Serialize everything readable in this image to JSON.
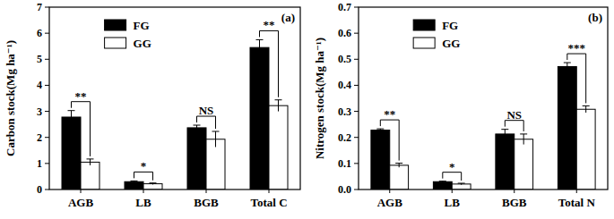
{
  "chart_data": [
    {
      "type": "bar",
      "title": "(a)",
      "y_label": "Carbon stock(Mg ha⁻¹)",
      "categories": [
        "AGB",
        "LB",
        "BGB",
        "Total C"
      ],
      "series": [
        {
          "name": "FG",
          "color": "#000000",
          "values": [
            2.78,
            0.3,
            2.37,
            5.45
          ],
          "errors": [
            0.25,
            0.03,
            0.1,
            0.3
          ]
        },
        {
          "name": "GG",
          "color": "#ffffff",
          "values": [
            1.05,
            0.22,
            1.93,
            3.22
          ],
          "errors": [
            0.12,
            0.03,
            0.3,
            0.22
          ]
        }
      ],
      "significance": [
        "**",
        "*",
        "NS",
        "**"
      ],
      "ylim": [
        0,
        7
      ],
      "yticks": [
        0,
        1,
        2,
        3,
        4,
        5,
        6,
        7
      ],
      "legend": "upper left",
      "grid": false
    },
    {
      "type": "bar",
      "title": "(b)",
      "y_label": "Nitrogen stock(Mg ha⁻¹)",
      "categories": [
        "AGB",
        "LB",
        "BGB",
        "Total N"
      ],
      "series": [
        {
          "name": "FG",
          "color": "#000000",
          "values": [
            0.228,
            0.03,
            0.213,
            0.472
          ],
          "errors": [
            0.005,
            0.002,
            0.018,
            0.015
          ]
        },
        {
          "name": "GG",
          "color": "#ffffff",
          "values": [
            0.093,
            0.021,
            0.193,
            0.308
          ],
          "errors": [
            0.008,
            0.003,
            0.02,
            0.013
          ]
        }
      ],
      "significance": [
        "**",
        "*",
        "NS",
        "***"
      ],
      "ylim": [
        0,
        0.7
      ],
      "yticks": [
        {
          "value": 0,
          "label": "0.0"
        },
        0.1,
        0.2,
        0.3,
        0.4,
        0.5,
        0.6,
        0.7
      ],
      "legend": "upper left",
      "grid": false
    }
  ]
}
